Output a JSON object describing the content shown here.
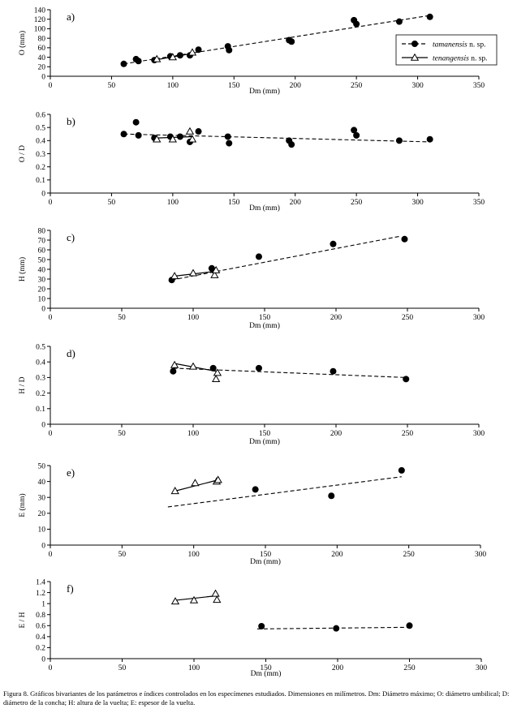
{
  "caption": "Figura 8. Gráficos bivariantes de los parámetros e índices controlados en los especímenes estudiados. Dimensiones en milímetros. Dm: Diámetro máximo; O: diámetro umbilical; D: diámetro de la concha; H: altura de la vuelta; E: espesor de la vuelta.",
  "legend": {
    "series": [
      {
        "name": "tamanensis",
        "suffix": "n. sp.",
        "marker": "filled-circle",
        "line": "dashed"
      },
      {
        "name": "tenangensis",
        "suffix": "n. sp.",
        "marker": "open-triangle",
        "line": "solid"
      }
    ]
  },
  "chart_data": [
    {
      "type": "scatter",
      "panel": "a)",
      "xlabel": "Dm (mm)",
      "ylabel": "O (mm)",
      "xlim": [
        0,
        350
      ],
      "ylim": [
        0,
        140
      ],
      "xticks": [
        0,
        50,
        100,
        150,
        200,
        250,
        300,
        350
      ],
      "yticks": [
        0,
        20,
        40,
        60,
        80,
        100,
        120,
        140
      ],
      "series": [
        {
          "name": "tamanensis",
          "points": [
            [
              60,
              26
            ],
            [
              70,
              36
            ],
            [
              72,
              32
            ],
            [
              85,
              34
            ],
            [
              98,
              42
            ],
            [
              106,
              44
            ],
            [
              114,
              44
            ],
            [
              121,
              56
            ],
            [
              145,
              63
            ],
            [
              146,
              55
            ],
            [
              195,
              76
            ],
            [
              197,
              73
            ],
            [
              248,
              118
            ],
            [
              250,
              110
            ],
            [
              285,
              115
            ],
            [
              310,
              125
            ]
          ],
          "trend": [
            [
              60,
              26
            ],
            [
              310,
              128
            ]
          ]
        },
        {
          "name": "tenangensis",
          "points": [
            [
              87,
              36
            ],
            [
              100,
              40
            ],
            [
              116,
              50
            ]
          ],
          "trend": [
            [
              87,
              35
            ],
            [
              116,
              48
            ]
          ]
        }
      ]
    },
    {
      "type": "scatter",
      "panel": "b)",
      "xlabel": "Dm (mm)",
      "ylabel": "O / D",
      "xlim": [
        0,
        350
      ],
      "ylim": [
        0,
        0.6
      ],
      "xticks": [
        0,
        50,
        100,
        150,
        200,
        250,
        300,
        350
      ],
      "yticks": [
        0,
        0.1,
        0.2,
        0.3,
        0.4,
        0.5,
        0.6
      ],
      "series": [
        {
          "name": "tamanensis",
          "points": [
            [
              60,
              0.45
            ],
            [
              70,
              0.54
            ],
            [
              72,
              0.44
            ],
            [
              85,
              0.42
            ],
            [
              98,
              0.43
            ],
            [
              106,
              0.43
            ],
            [
              114,
              0.39
            ],
            [
              121,
              0.47
            ],
            [
              145,
              0.43
            ],
            [
              146,
              0.38
            ],
            [
              195,
              0.4
            ],
            [
              197,
              0.37
            ],
            [
              248,
              0.48
            ],
            [
              250,
              0.44
            ],
            [
              285,
              0.4
            ],
            [
              310,
              0.41
            ]
          ],
          "trend": [
            [
              60,
              0.45
            ],
            [
              310,
              0.39
            ]
          ]
        },
        {
          "name": "tenangensis",
          "points": [
            [
              87,
              0.41
            ],
            [
              100,
              0.41
            ],
            [
              114,
              0.47
            ],
            [
              116,
              0.41
            ]
          ],
          "trend": [
            [
              87,
              0.42
            ],
            [
              116,
              0.43
            ]
          ]
        }
      ]
    },
    {
      "type": "scatter",
      "panel": "c)",
      "xlabel": "Dm (mm)",
      "ylabel": "H (mm)",
      "xlim": [
        0,
        300
      ],
      "ylim": [
        0,
        80
      ],
      "xticks": [
        0,
        50,
        100,
        150,
        200,
        250,
        300
      ],
      "yticks": [
        0,
        10,
        20,
        30,
        40,
        50,
        60,
        70,
        80
      ],
      "series": [
        {
          "name": "tamanensis",
          "points": [
            [
              85,
              29
            ],
            [
              113,
              41
            ],
            [
              146,
              53
            ],
            [
              198,
              66
            ],
            [
              248,
              71
            ]
          ],
          "trend": [
            [
              85,
              29
            ],
            [
              245,
              74
            ]
          ]
        },
        {
          "name": "tenangensis",
          "points": [
            [
              87,
              33
            ],
            [
              100,
              36
            ],
            [
              115,
              34
            ],
            [
              116,
              39
            ]
          ],
          "trend": [
            [
              87,
              33
            ],
            [
              116,
              38
            ]
          ]
        }
      ]
    },
    {
      "type": "scatter",
      "panel": "d)",
      "xlabel": "Dm (mm)",
      "ylabel": "H / D",
      "xlim": [
        0,
        300
      ],
      "ylim": [
        0,
        0.5
      ],
      "xticks": [
        0,
        50,
        100,
        150,
        200,
        250,
        300
      ],
      "yticks": [
        0,
        0.1,
        0.2,
        0.3,
        0.4,
        0.5
      ],
      "series": [
        {
          "name": "tamanensis",
          "points": [
            [
              86,
              0.34
            ],
            [
              114,
              0.36
            ],
            [
              146,
              0.36
            ],
            [
              198,
              0.34
            ],
            [
              249,
              0.29
            ]
          ],
          "trend": [
            [
              86,
              0.36
            ],
            [
              249,
              0.3
            ]
          ]
        },
        {
          "name": "tenangensis",
          "points": [
            [
              87,
              0.38
            ],
            [
              100,
              0.37
            ],
            [
              116,
              0.29
            ],
            [
              117,
              0.33
            ]
          ],
          "trend": [
            [
              87,
              0.39
            ],
            [
              116,
              0.34
            ]
          ]
        }
      ]
    },
    {
      "type": "scatter",
      "panel": "e)",
      "xlabel": "Dm (mm)",
      "ylabel": "E (mm)",
      "xlim": [
        0,
        300
      ],
      "ylim": [
        0,
        50
      ],
      "xticks": [
        0,
        50,
        100,
        150,
        200,
        250,
        300
      ],
      "yticks": [
        0,
        10,
        20,
        30,
        40,
        50
      ],
      "series": [
        {
          "name": "tamanensis",
          "points": [
            [
              143,
              35
            ],
            [
              196,
              31
            ],
            [
              245,
              47
            ]
          ],
          "trend": [
            [
              82,
              24
            ],
            [
              245,
              43
            ]
          ]
        },
        {
          "name": "tenangensis",
          "points": [
            [
              87,
              34
            ],
            [
              101,
              39
            ],
            [
              116,
              40
            ],
            [
              117,
              41
            ]
          ],
          "trend": [
            [
              87,
              34
            ],
            [
              117,
              41
            ]
          ]
        }
      ]
    },
    {
      "type": "scatter",
      "panel": "f)",
      "xlabel": "Dm (mm)",
      "ylabel": "E / H",
      "xlim": [
        0,
        300
      ],
      "ylim": [
        0,
        1.4
      ],
      "xticks": [
        0,
        50,
        100,
        150,
        200,
        250,
        300
      ],
      "yticks": [
        0,
        0.2,
        0.4,
        0.6,
        0.8,
        1,
        1.2,
        1.4
      ],
      "series": [
        {
          "name": "tamanensis",
          "points": [
            [
              147,
              0.59
            ],
            [
              199,
              0.55
            ],
            [
              250,
              0.6
            ]
          ],
          "trend": [
            [
              144,
              0.54
            ],
            [
              250,
              0.57
            ]
          ]
        },
        {
          "name": "tenangensis",
          "points": [
            [
              87,
              1.04
            ],
            [
              100,
              1.06
            ],
            [
              115,
              1.18
            ],
            [
              116,
              1.07
            ]
          ],
          "trend": [
            [
              87,
              1.06
            ],
            [
              115,
              1.14
            ]
          ]
        }
      ]
    }
  ]
}
